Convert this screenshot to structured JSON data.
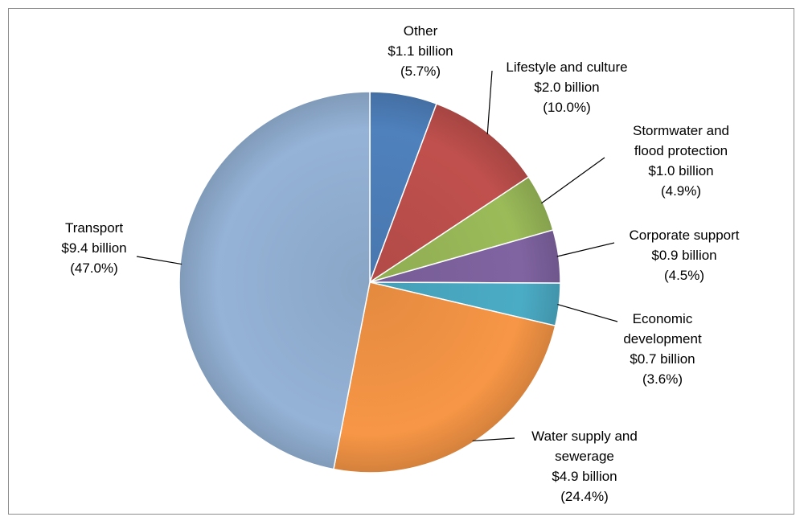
{
  "chart_data": {
    "type": "pie",
    "title": "",
    "start_angle_deg": 0,
    "direction": "clockwise",
    "slices": [
      {
        "category_lines": [
          "Other"
        ],
        "amount": "$1.1 billion",
        "percent_label": "(5.7%)",
        "value": 5.7,
        "color": "#4F81BD"
      },
      {
        "category_lines": [
          "Lifestyle and culture"
        ],
        "amount": "$2.0 billion",
        "percent_label": "(10.0%)",
        "value": 10.0,
        "color": "#C0504D"
      },
      {
        "category_lines": [
          "Stormwater and",
          "flood protection"
        ],
        "amount": "$1.0 billion",
        "percent_label": "(4.9%)",
        "value": 4.9,
        "color": "#9BBB59"
      },
      {
        "category_lines": [
          "Corporate support"
        ],
        "amount": "$0.9 billion",
        "percent_label": "(4.5%)",
        "value": 4.5,
        "color": "#8064A2"
      },
      {
        "category_lines": [
          "Economic",
          "development"
        ],
        "amount": "$0.7 billion",
        "percent_label": "(3.6%)",
        "value": 3.6,
        "color": "#4BACC6"
      },
      {
        "category_lines": [
          "Water supply and",
          "sewerage"
        ],
        "amount": "$4.9 billion",
        "percent_label": "(24.4%)",
        "value": 24.4,
        "color": "#F79646"
      },
      {
        "category_lines": [
          "Transport"
        ],
        "amount": "$9.4 billion",
        "percent_label": "(47.0%)",
        "value": 47.0,
        "color": "#95B3D7"
      }
    ]
  }
}
